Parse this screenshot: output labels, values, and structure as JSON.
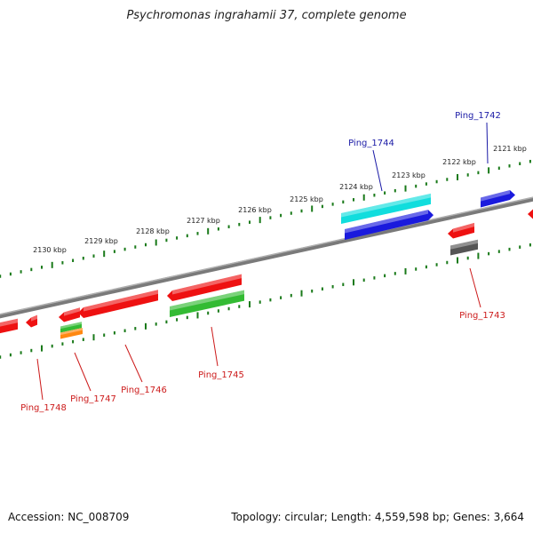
{
  "title": "Psychromonas ingrahamii 37, complete genome",
  "footer": {
    "accession": "Accession: NC_008709",
    "stats": "Topology: circular; Length: 4,559,598 bp; Genes: 3,664"
  },
  "colors": {
    "backbone": "#7a7a7a",
    "tick": "#1a7a1a",
    "forward_label": "#1a1aa6",
    "reverse_label": "#cc1a1a",
    "red": "#ee1111",
    "green": "#33bb33",
    "blue": "#1a1add",
    "cyan": "#11dddd",
    "orange": "#ff8811",
    "gray": "#555555"
  },
  "ticks": [
    {
      "label": "2121 kbp"
    },
    {
      "label": "2122 kbp"
    },
    {
      "label": "2123 kbp"
    },
    {
      "label": "2124 kbp"
    },
    {
      "label": "2125 kbp"
    },
    {
      "label": "2126 kbp"
    },
    {
      "label": "2127 kbp"
    },
    {
      "label": "2128 kbp"
    },
    {
      "label": "2129 kbp"
    },
    {
      "label": "2130 kbp"
    }
  ],
  "gene_labels": [
    {
      "id": "Ping_1742",
      "text": "Ping_1742",
      "strand": "forward"
    },
    {
      "id": "Ping_1744",
      "text": "Ping_1744",
      "strand": "forward"
    },
    {
      "id": "Ping_1743",
      "text": "Ping_1743",
      "strand": "reverse"
    },
    {
      "id": "Ping_1745",
      "text": "Ping_1745",
      "strand": "reverse"
    },
    {
      "id": "Ping_1746",
      "text": "Ping_1746",
      "strand": "reverse"
    },
    {
      "id": "Ping_1747",
      "text": "Ping_1747",
      "strand": "reverse"
    },
    {
      "id": "Ping_1748",
      "text": "Ping_1748",
      "strand": "reverse"
    }
  ]
}
